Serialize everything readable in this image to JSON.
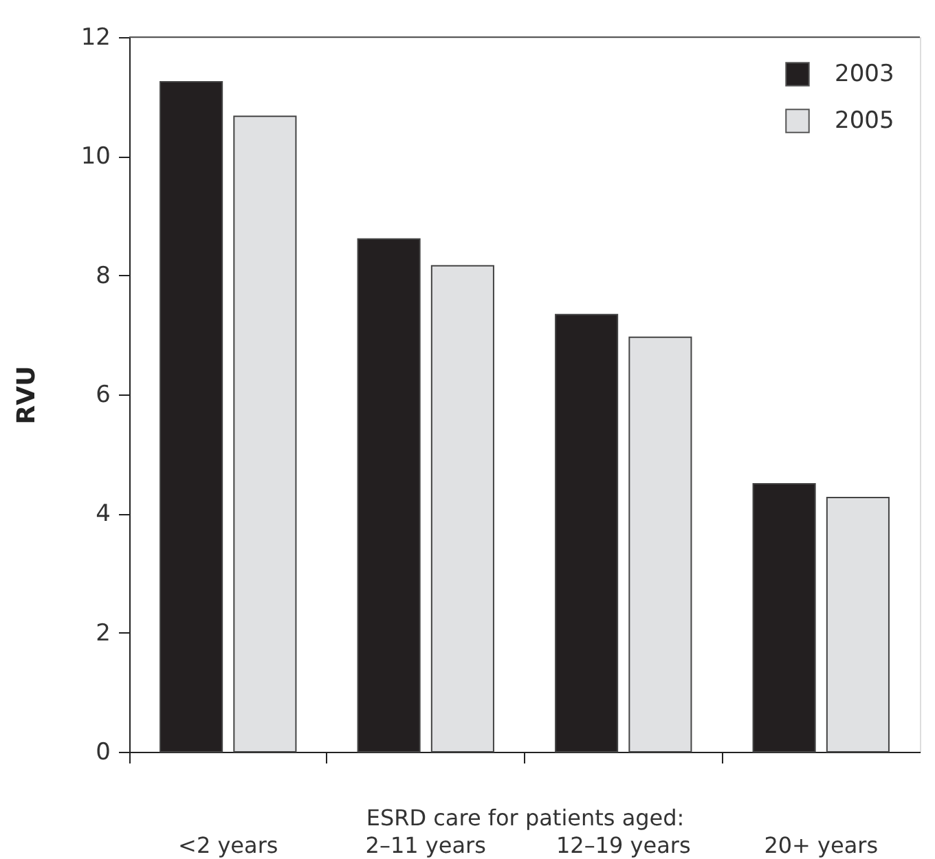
{
  "chart_data": {
    "type": "bar",
    "ylabel": "RVU",
    "xlabel": "ESRD care for patients aged:",
    "categories": [
      "<2 years",
      "2–11 years",
      "12–19 years",
      "20+ years"
    ],
    "series": [
      {
        "name": "2003",
        "color": "#231f20",
        "values": [
          11.25,
          8.61,
          7.34,
          4.5
        ]
      },
      {
        "name": "2005",
        "color": "#e0e1e3",
        "values": [
          10.67,
          8.16,
          6.96,
          4.27
        ]
      }
    ],
    "ylim": [
      0,
      12
    ],
    "yticks": [
      0,
      2,
      4,
      6,
      8,
      10,
      12
    ],
    "grid": false,
    "legend": "top right"
  }
}
